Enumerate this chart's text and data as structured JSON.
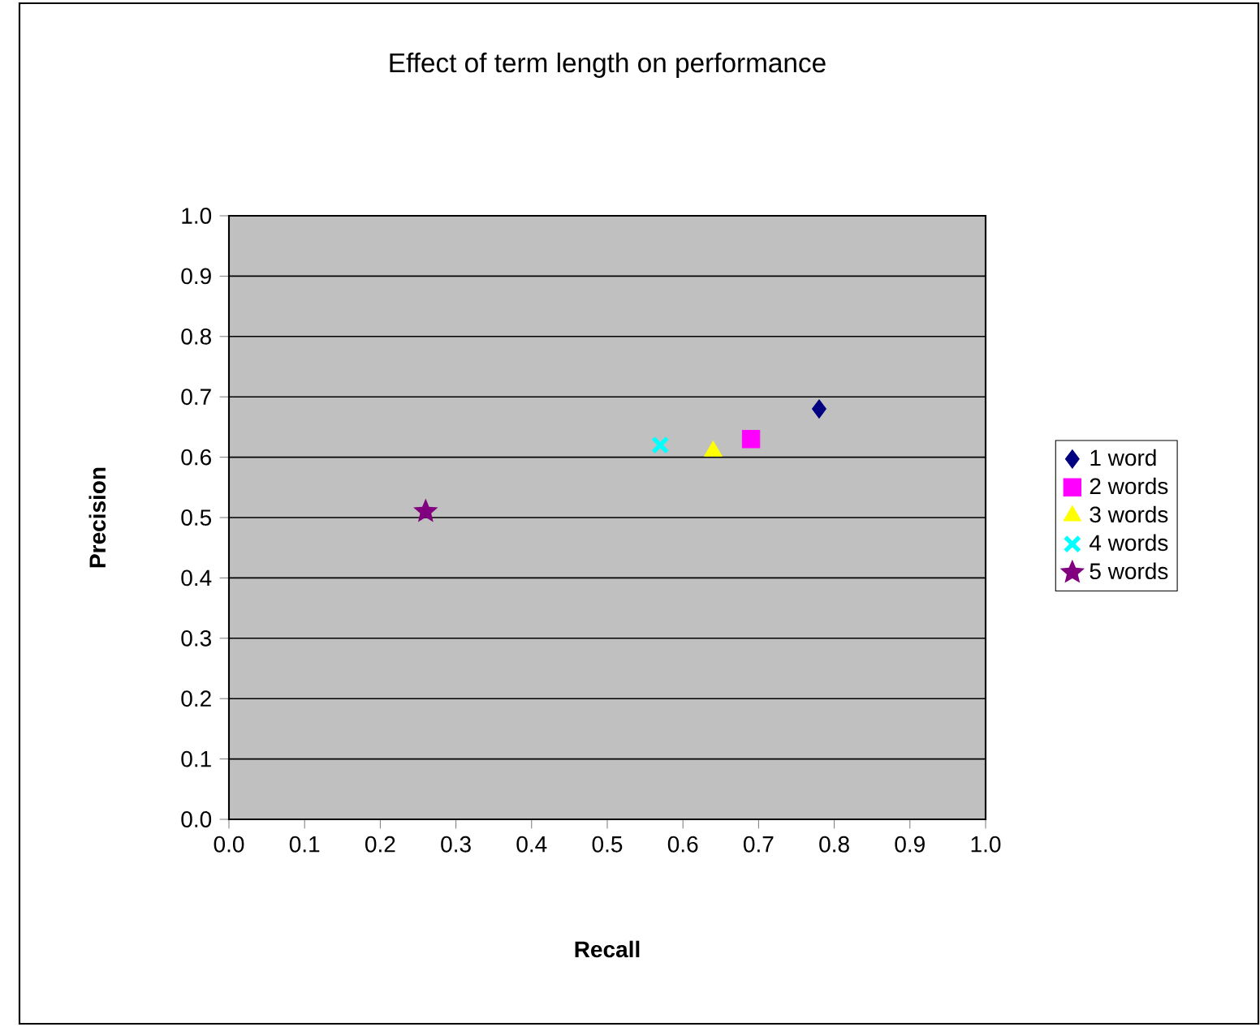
{
  "chart_data": {
    "type": "scatter",
    "title": "Effect of term length on performance",
    "xlabel": "Recall",
    "ylabel": "Precision",
    "xlim": [
      0,
      1
    ],
    "ylim": [
      0,
      1
    ],
    "xticks": [
      {
        "value": 0,
        "label": "0.0"
      },
      {
        "value": 0.1,
        "label": "0.1"
      },
      {
        "value": 0.2,
        "label": "0.2"
      },
      {
        "value": 0.3,
        "label": "0.3"
      },
      {
        "value": 0.4,
        "label": "0.4"
      },
      {
        "value": 0.5,
        "label": "0.5"
      },
      {
        "value": 0.6,
        "label": "0.6"
      },
      {
        "value": 0.7,
        "label": "0.7"
      },
      {
        "value": 0.8,
        "label": "0.8"
      },
      {
        "value": 0.9,
        "label": "0.9"
      },
      {
        "value": 1,
        "label": "1.0"
      }
    ],
    "yticks": [
      {
        "value": 0,
        "label": "0.0"
      },
      {
        "value": 0.1,
        "label": "0.1"
      },
      {
        "value": 0.2,
        "label": "0.2"
      },
      {
        "value": 0.3,
        "label": "0.3"
      },
      {
        "value": 0.4,
        "label": "0.4"
      },
      {
        "value": 0.5,
        "label": "0.5"
      },
      {
        "value": 0.6,
        "label": "0.6"
      },
      {
        "value": 0.7,
        "label": "0.7"
      },
      {
        "value": 0.8,
        "label": "0.8"
      },
      {
        "value": 0.9,
        "label": "0.9"
      },
      {
        "value": 1,
        "label": "1.0"
      }
    ],
    "grid": "y",
    "legend": "right",
    "series": [
      {
        "name": "1 word",
        "color": "#000080",
        "marker": "diamond",
        "x": [
          0.78
        ],
        "values": [
          0.68
        ]
      },
      {
        "name": "2 words",
        "color": "#ff00ff",
        "marker": "square",
        "x": [
          0.69
        ],
        "values": [
          0.63
        ]
      },
      {
        "name": "3 words",
        "color": "#ffff00",
        "marker": "triangle",
        "x": [
          0.64
        ],
        "values": [
          0.61
        ]
      },
      {
        "name": "4 words",
        "color": "#00ffff",
        "marker": "cross",
        "x": [
          0.57
        ],
        "values": [
          0.62
        ]
      },
      {
        "name": "5 words",
        "color": "#800080",
        "marker": "star",
        "x": [
          0.26
        ],
        "values": [
          0.51
        ]
      }
    ]
  }
}
